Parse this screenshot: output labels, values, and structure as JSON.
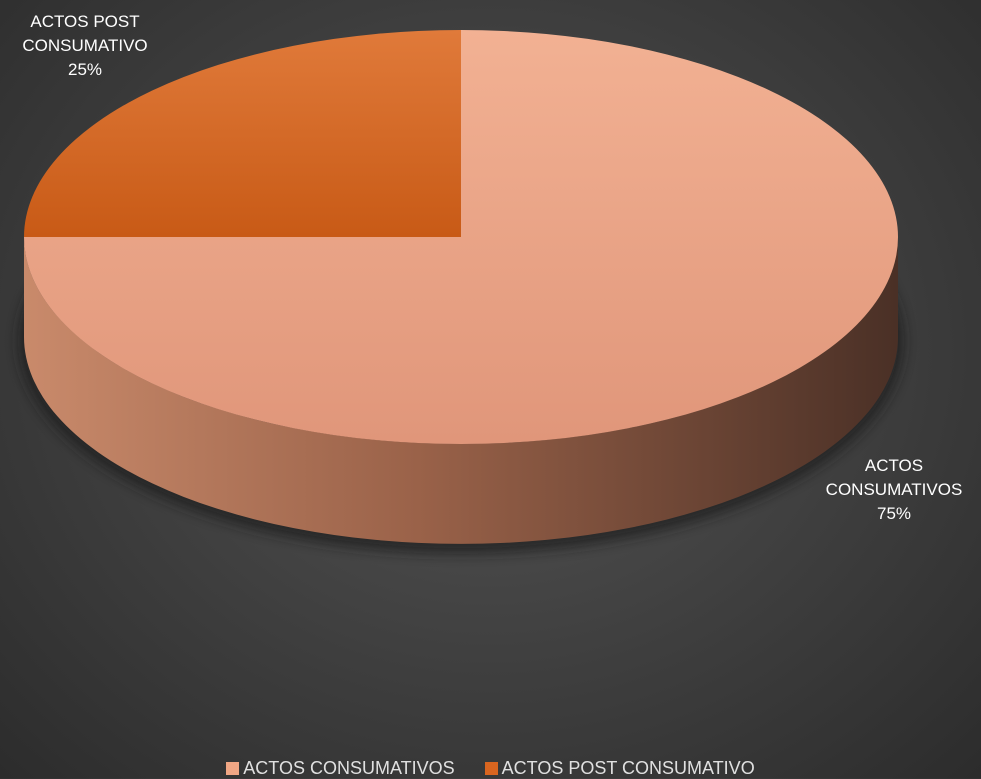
{
  "chart_data": {
    "type": "pie",
    "style": "3d",
    "categories": [
      "ACTOS CONSUMATIVOS",
      "ACTOS POST CONSUMATIVO"
    ],
    "values": [
      75,
      25
    ],
    "value_labels": [
      "75%",
      "25%"
    ],
    "colors": [
      "#F0A684",
      "#D9651F"
    ],
    "legend_position": "bottom",
    "title": ""
  },
  "labels": {
    "post": {
      "line1": "ACTOS POST",
      "line2": "CONSUMATIVO",
      "pct": "25%"
    },
    "cons": {
      "line1": "ACTOS",
      "line2": "CONSUMATIVOS",
      "pct": "75%"
    }
  },
  "legend": [
    {
      "label": "ACTOS CONSUMATIVOS",
      "color": "#F0A684"
    },
    {
      "label": "ACTOS POST CONSUMATIVO",
      "color": "#D9651F"
    }
  ]
}
